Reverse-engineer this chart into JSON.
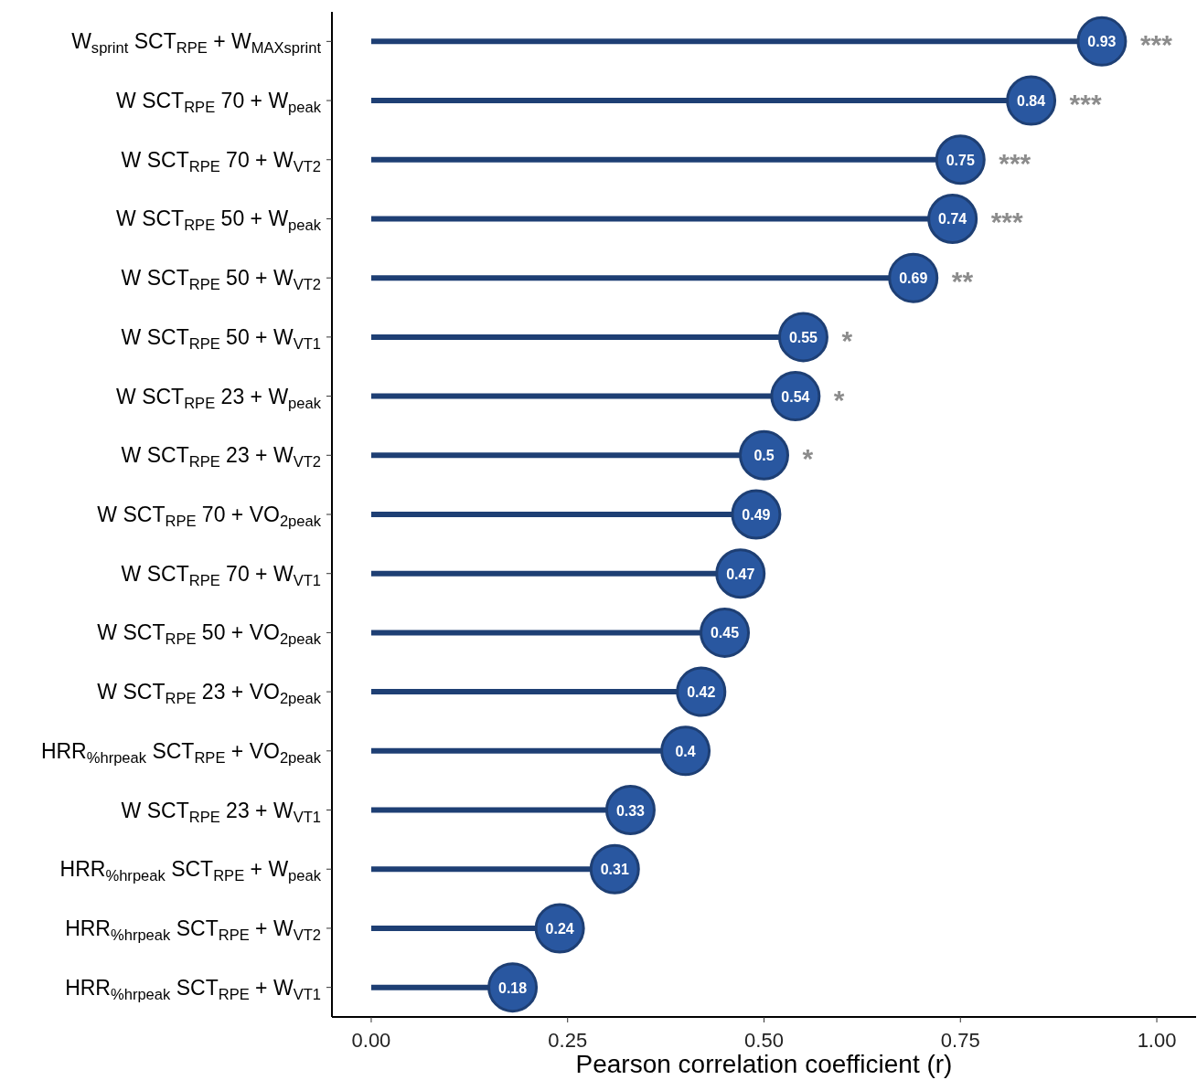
{
  "chart_data": {
    "type": "lollipop",
    "orientation": "horizontal",
    "xlabel": "Pearson correlation coefficient (r)",
    "categories": [
      "W$_{sprint}$ SCT$_{RPE}$ + W$_{MAXsprint}$",
      "W SCT$_{RPE}$ 70 + W$_{peak}$",
      "W SCT$_{RPE}$ 70 + W$_{VT2}$",
      "W SCT$_{RPE}$ 50 + W$_{peak}$",
      "W SCT$_{RPE}$ 50 + W$_{VT2}$",
      "W SCT$_{RPE}$ 50 + W$_{VT1}$",
      "W SCT$_{RPE}$ 23 + W$_{peak}$",
      "W SCT$_{RPE}$ 23 + W$_{VT2}$",
      "W SCT$_{RPE}$ 70 + VO$_{2peak}$",
      "W SCT$_{RPE}$ 70 + W$_{VT1}$",
      "W SCT$_{RPE}$ 50 + VO$_{2peak}$",
      "W SCT$_{RPE}$ 23 + VO$_{2peak}$",
      "HRR$_{%hrpeak}$ SCT$_{RPE}$ + VO$_{2peak}$",
      "W SCT$_{RPE}$ 23 + W$_{VT1}$",
      "HRR$_{%hrpeak}$ SCT$_{RPE}$ + W$_{peak}$",
      "HRR$_{%hrpeak}$ SCT$_{RPE}$ + W$_{VT2}$",
      "HRR$_{%hrpeak}$ SCT$_{RPE}$ + W$_{VT1}$"
    ],
    "values": [
      0.93,
      0.84,
      0.75,
      0.74,
      0.69,
      0.55,
      0.54,
      0.5,
      0.49,
      0.47,
      0.45,
      0.42,
      0.4,
      0.33,
      0.31,
      0.24,
      0.18
    ],
    "color": "#1e3f74",
    "marker": "circle",
    "data_labels": true,
    "xlim": [
      -0.05,
      1.05
    ],
    "xticks": [
      {
        "value": 0,
        "label": "0.00"
      },
      {
        "value": 0.25,
        "label": "0.25"
      },
      {
        "value": 0.5,
        "label": "0.50"
      },
      {
        "value": 0.75,
        "label": "0.75"
      },
      {
        "value": 1,
        "label": "1.00"
      }
    ],
    "annotations": [
      {
        "text": "***",
        "x": 0.93,
        "y": "W$_{sprint}$ SCT$_{RPE}$ + W$_{MAXsprint}$"
      },
      {
        "text": "***",
        "x": 0.84,
        "y": "W SCT$_{RPE}$ 70 + W$_{peak}$"
      },
      {
        "text": "***",
        "x": 0.75,
        "y": "W SCT$_{RPE}$ 70 + W$_{VT2}$"
      },
      {
        "text": "***",
        "x": 0.74,
        "y": "W SCT$_{RPE}$ 50 + W$_{peak}$"
      },
      {
        "text": "**",
        "x": 0.69,
        "y": "W SCT$_{RPE}$ 50 + W$_{VT2}$"
      },
      {
        "text": "*",
        "x": 0.55,
        "y": "W SCT$_{RPE}$ 50 + W$_{VT1}$"
      },
      {
        "text": "*",
        "x": 0.54,
        "y": "W SCT$_{RPE}$ 23 + W$_{peak}$"
      },
      {
        "text": "*",
        "x": 0.5,
        "y": "W SCT$_{RPE}$ 23 + W$_{VT2}$"
      }
    ]
  }
}
